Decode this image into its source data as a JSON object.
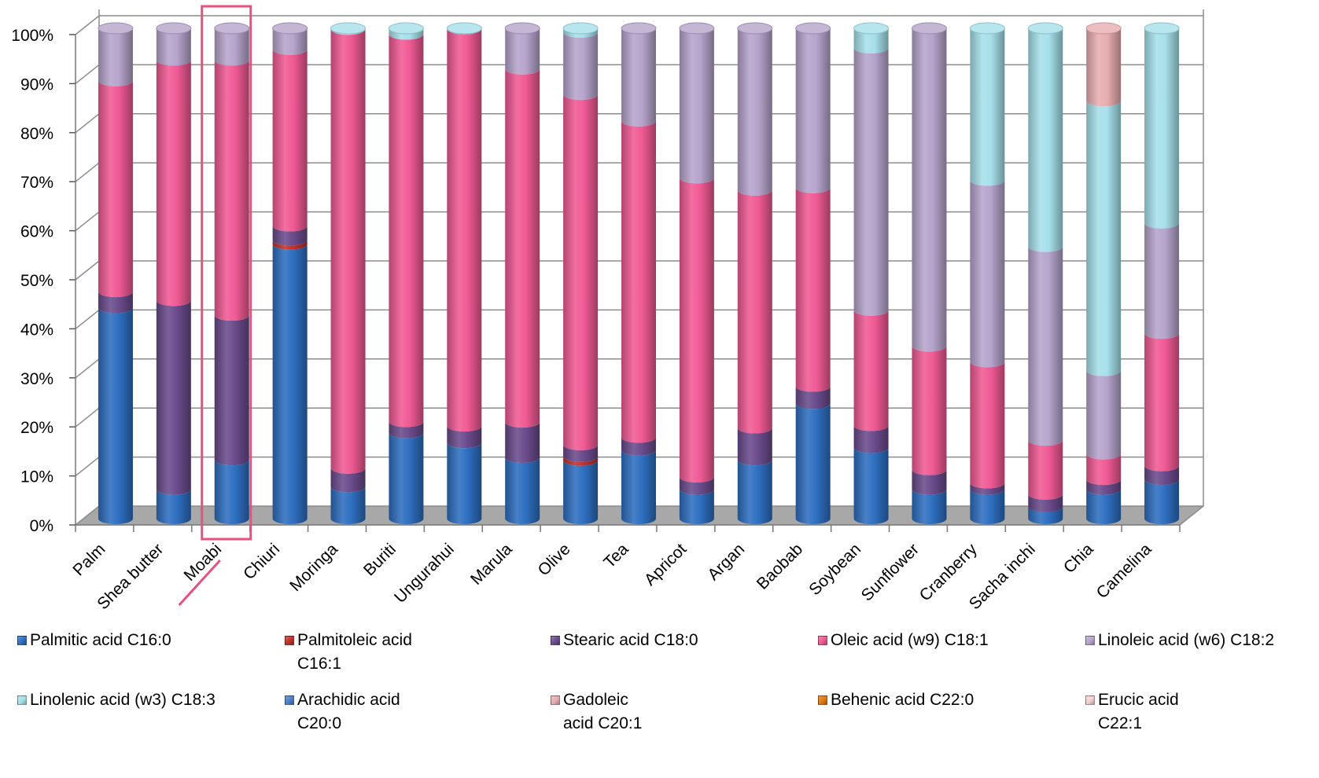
{
  "chart_data": {
    "type": "bar",
    "stacked": true,
    "percent_stacked": true,
    "style": "3d-cylinder",
    "title": "",
    "xlabel": "",
    "ylabel": "",
    "ylim": [
      0,
      100
    ],
    "yticks": [
      "0%",
      "10%",
      "20%",
      "30%",
      "40%",
      "50%",
      "60%",
      "70%",
      "80%",
      "90%",
      "100%"
    ],
    "grid": true,
    "legend_position": "bottom",
    "highlighted_category": "Moabi",
    "highlight_color": "#e8507f",
    "categories": [
      "Palm",
      "Shea butter",
      "Moabi",
      "Chiuri",
      "Moringa",
      "Buriti",
      "Ungurahui",
      "Marula",
      "Olive",
      "Tea",
      "Apricot",
      "Argan",
      "Baobab",
      "Soybean",
      "Sunflower",
      "Cranberry",
      "Sacha inchi",
      "Chia",
      "Camelina"
    ],
    "series": [
      {
        "name": "Palmitic acid C16:0",
        "color": "#2e6fc0",
        "values": [
          43,
          6,
          12,
          56,
          6.5,
          17.5,
          15.5,
          12.5,
          12,
          14,
          6,
          12,
          23.5,
          14.5,
          6,
          6,
          2.5,
          6,
          8
        ]
      },
      {
        "name": "Palmitoleic acid\nC16:1",
        "color": "#c0302a",
        "values": [
          0,
          0,
          0,
          0.8,
          0,
          0,
          0,
          0,
          0.8,
          0,
          0,
          0,
          0,
          0,
          0,
          0,
          0,
          0,
          0
        ]
      },
      {
        "name": "Stearic acid C18:0",
        "color": "#6a4b8c",
        "values": [
          3.3,
          38.5,
          29.5,
          2.9,
          3.8,
          2.3,
          3.4,
          7.2,
          2.4,
          2.6,
          2.5,
          6.5,
          3.5,
          4.5,
          4,
          1.3,
          2.5,
          2,
          2.8
        ]
      },
      {
        "name": "Oleic acid (w9) C18:1",
        "color": "#f05a94",
        "values": [
          43,
          49,
          52,
          36,
          89.5,
          79,
          81,
          72,
          72,
          64.5,
          61,
          48.5,
          40.5,
          23.5,
          25.2,
          24.7,
          11,
          5.2,
          27
        ]
      },
      {
        "name": "Linoleic acid (w6) C18:2",
        "color": "#b6a4cc",
        "values": [
          10.7,
          6.5,
          6.5,
          4.3,
          0,
          0,
          0,
          8.3,
          12.8,
          18.9,
          30.5,
          33,
          32.5,
          53.5,
          64.8,
          37,
          39.5,
          17,
          22.5
        ]
      },
      {
        "name": "Linolenic acid (w3) C18:3",
        "color": "#a6e0ea",
        "values": [
          0,
          0,
          0,
          0,
          0.2,
          1.2,
          0.1,
          0,
          0.8,
          0,
          0,
          0,
          0,
          4,
          0,
          31,
          44.5,
          55,
          39.7
        ]
      },
      {
        "name": "Arachidic acid\nC20:0",
        "color": "#4a7fc8",
        "values": [
          0,
          0,
          0,
          0,
          0,
          0,
          0,
          0,
          0,
          0,
          0,
          0,
          0,
          0,
          0,
          0,
          0,
          0,
          0
        ]
      },
      {
        "name": "Gadoleic\nacid C20:1",
        "color": "#e8aeb2",
        "values": [
          0,
          0,
          0,
          0,
          0,
          0,
          0,
          0,
          0,
          0,
          0,
          0,
          0,
          0,
          0,
          0,
          0,
          14.8,
          0
        ]
      },
      {
        "name": "Behenic acid C22:0",
        "color": "#e07a10",
        "values": [
          0,
          0,
          0,
          0,
          0,
          0,
          0,
          0,
          0,
          0,
          0,
          0,
          0,
          0,
          0,
          0,
          0,
          0,
          0
        ]
      },
      {
        "name": "Erucic acid\nC22:1",
        "color": "#f3d0d2",
        "values": [
          0,
          0,
          0,
          0,
          0,
          0,
          0,
          0,
          0,
          0,
          0,
          0,
          0,
          0,
          0,
          0,
          0,
          0,
          0
        ]
      }
    ]
  }
}
